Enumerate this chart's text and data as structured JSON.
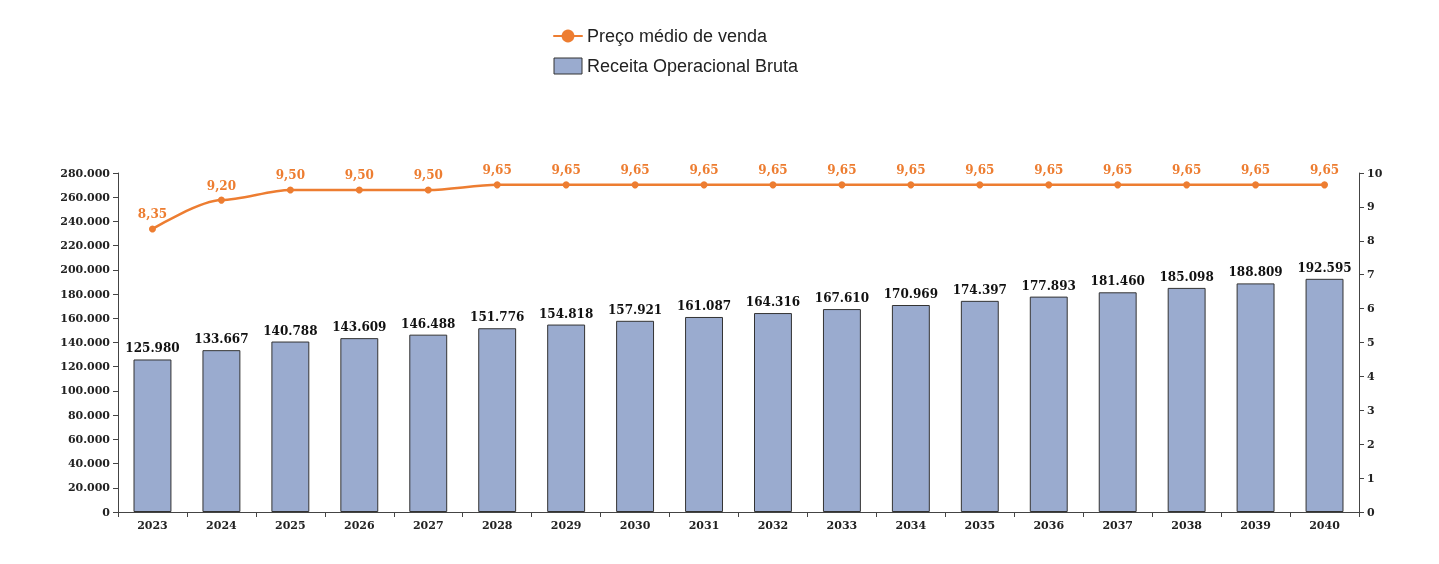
{
  "chart_data": {
    "type": "bar",
    "categories": [
      "2023",
      "2024",
      "2025",
      "2026",
      "2027",
      "2028",
      "2029",
      "2030",
      "2031",
      "2032",
      "2033",
      "2034",
      "2035",
      "2036",
      "2037",
      "2038",
      "2039",
      "2040"
    ],
    "series": [
      {
        "name": "Preço médio de venda",
        "type": "line",
        "axis": "y2",
        "color": "#ed7d31",
        "marker": "circle",
        "line_style": "solid",
        "values": [
          8.35,
          9.2,
          9.5,
          9.5,
          9.5,
          9.65,
          9.65,
          9.65,
          9.65,
          9.65,
          9.65,
          9.65,
          9.65,
          9.65,
          9.65,
          9.65,
          9.65,
          9.65
        ],
        "value_labels": [
          "8,35",
          "9,20",
          "9,50",
          "9,50",
          "9,50",
          "9,65",
          "9,65",
          "9,65",
          "9,65",
          "9,65",
          "9,65",
          "9,65",
          "9,65",
          "9,65",
          "9,65",
          "9,65",
          "9,65",
          "9,65"
        ]
      },
      {
        "name": "Receita Operacional Bruta",
        "color": "#9aabcf",
        "values": [
          125980,
          133667,
          140788,
          143609,
          146488,
          151776,
          154818,
          157921,
          161087,
          164316,
          167610,
          170969,
          174397,
          177893,
          181460,
          185098,
          188809,
          192595
        ],
        "value_labels": [
          "125.980",
          "133.667",
          "140.788",
          "143.609",
          "146.488",
          "151.776",
          "154.818",
          "157.921",
          "161.087",
          "164.316",
          "167.610",
          "170.969",
          "174.397",
          "177.893",
          "181.460",
          "185.098",
          "188.809",
          "192.595"
        ]
      }
    ],
    "ylim": [
      0,
      280000
    ],
    "yticks": [
      {
        "value": 0,
        "label": "0"
      },
      {
        "value": 20000,
        "label": "20.000"
      },
      {
        "value": 40000,
        "label": "40.000"
      },
      {
        "value": 60000,
        "label": "60.000"
      },
      {
        "value": 80000,
        "label": "80.000"
      },
      {
        "value": 100000,
        "label": "100.000"
      },
      {
        "value": 120000,
        "label": "120.000"
      },
      {
        "value": 140000,
        "label": "140.000"
      },
      {
        "value": 160000,
        "label": "160.000"
      },
      {
        "value": 180000,
        "label": "180.000"
      },
      {
        "value": 200000,
        "label": "200.000"
      },
      {
        "value": 220000,
        "label": "220.000"
      },
      {
        "value": 240000,
        "label": "240.000"
      },
      {
        "value": 260000,
        "label": "260.000"
      },
      {
        "value": 280000,
        "label": "280.000"
      }
    ],
    "y2lim": [
      0,
      10
    ],
    "y2ticks": [
      0,
      1,
      2,
      3,
      4,
      5,
      6,
      7,
      8,
      9,
      10
    ],
    "grid": false,
    "legend": "top"
  }
}
